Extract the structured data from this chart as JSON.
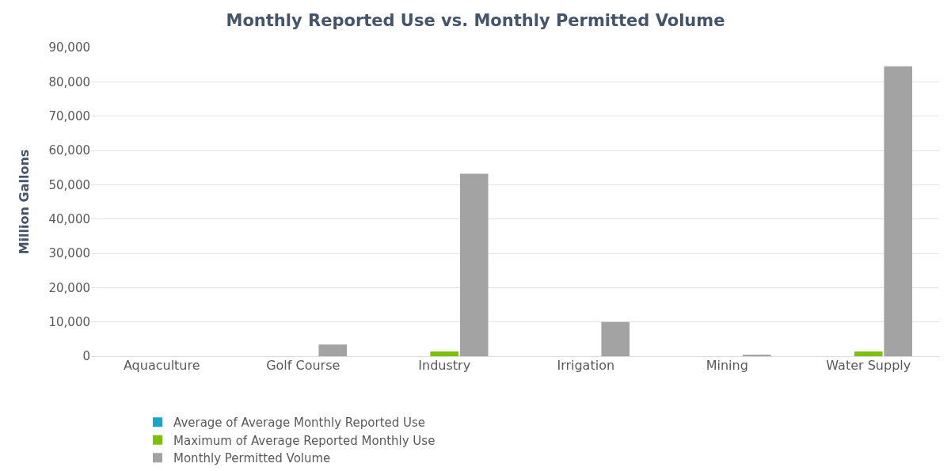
{
  "chart_data": {
    "type": "bar",
    "title": "Monthly Reported Use vs. Monthly Permitted Volume",
    "ylabel": "Million Gallons",
    "categories": [
      "Aquaculture",
      "Golf Course",
      "Industry",
      "Irrigation",
      "Mining",
      "Water Supply"
    ],
    "series": [
      {
        "name": "Average of Average Monthly Reported Use",
        "color": "#1ba3cc",
        "values": [
          0,
          0,
          0,
          0,
          0,
          0
        ]
      },
      {
        "name": "Maximum of Average Reported Monthly Use",
        "color": "#7cc00a",
        "values": [
          0,
          0,
          1400,
          0,
          0,
          1400
        ]
      },
      {
        "name": "Monthly Permitted Volume",
        "color": "#a3a3a3",
        "values": [
          0,
          3400,
          53200,
          10000,
          350,
          84500
        ]
      }
    ],
    "ylim": [
      0,
      90000
    ],
    "yticks": [
      {
        "value": 0,
        "label": "0"
      },
      {
        "value": 10000,
        "label": "10,000"
      },
      {
        "value": 20000,
        "label": "20,000"
      },
      {
        "value": 30000,
        "label": "30,000"
      },
      {
        "value": 40000,
        "label": "40,000"
      },
      {
        "value": 50000,
        "label": "50,000"
      },
      {
        "value": 60000,
        "label": "60,000"
      },
      {
        "value": 70000,
        "label": "70,000"
      },
      {
        "value": 80000,
        "label": "80,000"
      },
      {
        "value": 90000,
        "label": "90,000"
      }
    ],
    "grid": "y",
    "legend": "bottom"
  }
}
